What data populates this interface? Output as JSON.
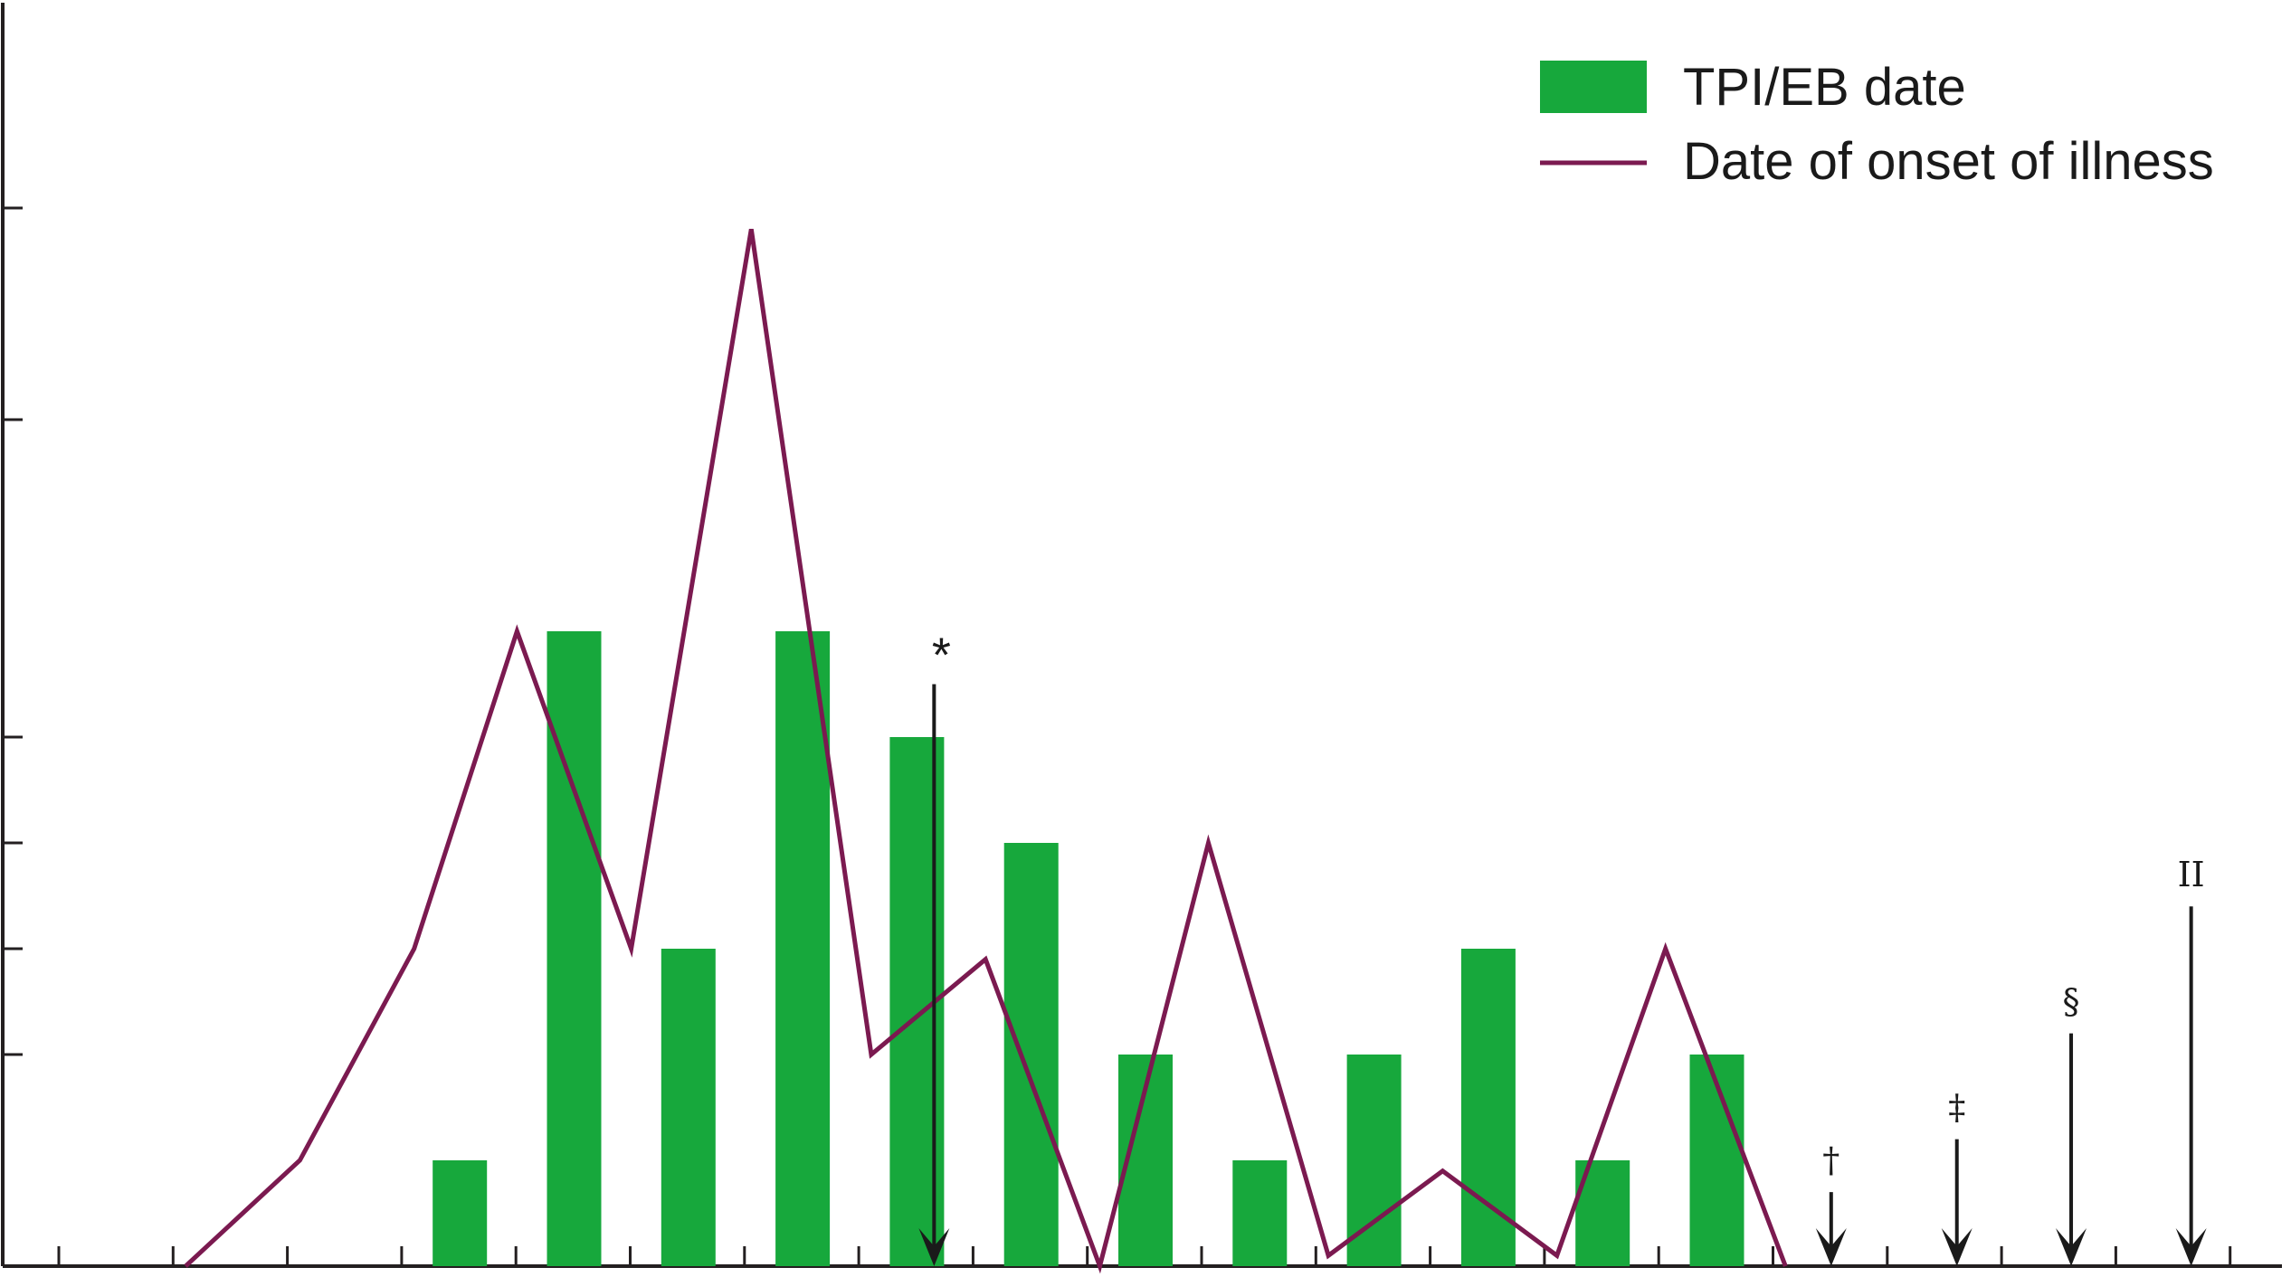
{
  "chart_data": {
    "type": "bar",
    "title": "",
    "xlabel": "",
    "ylabel": "",
    "ylim": [
      0,
      5
    ],
    "y_ticks": [
      0,
      1,
      1.5,
      2,
      2.5,
      4,
      5
    ],
    "x_slot_count": 19,
    "categories": [
      "1",
      "2",
      "3",
      "4",
      "5",
      "6",
      "7",
      "8",
      "9",
      "10",
      "11",
      "12",
      "13",
      "14",
      "15",
      "16",
      "17",
      "18",
      "19"
    ],
    "legend": {
      "position": "top-right",
      "entries": [
        {
          "name": "TPI/EB date",
          "kind": "bar",
          "color": "#17a83c"
        },
        {
          "name": "Date of onset of illness",
          "kind": "line",
          "color": "#7b1a50"
        }
      ]
    },
    "series": [
      {
        "name": "TPI/EB date",
        "kind": "bar",
        "color": "#17a83c",
        "points": [
          {
            "x": 4.5,
            "y": 0.5
          },
          {
            "x": 5.5,
            "y": 3.0
          },
          {
            "x": 6.5,
            "y": 1.5
          },
          {
            "x": 7.5,
            "y": 3.0
          },
          {
            "x": 8.5,
            "y": 2.5
          },
          {
            "x": 9.5,
            "y": 2.0
          },
          {
            "x": 10.5,
            "y": 1.0
          },
          {
            "x": 11.5,
            "y": 0.5
          },
          {
            "x": 12.5,
            "y": 1.0
          },
          {
            "x": 13.5,
            "y": 1.5
          },
          {
            "x": 14.5,
            "y": 0.5
          },
          {
            "x": 15.5,
            "y": 1.0
          }
        ]
      },
      {
        "name": "Date of onset of illness",
        "kind": "line",
        "color": "#7b1a50",
        "points": [
          {
            "x": 2.1,
            "y": 0.0
          },
          {
            "x": 3.1,
            "y": 0.5
          },
          {
            "x": 4.1,
            "y": 1.5
          },
          {
            "x": 5.0,
            "y": 3.0
          },
          {
            "x": 6.0,
            "y": 1.5
          },
          {
            "x": 7.05,
            "y": 4.9
          },
          {
            "x": 8.1,
            "y": 1.0
          },
          {
            "x": 9.1,
            "y": 1.45
          },
          {
            "x": 10.1,
            "y": 0.0
          },
          {
            "x": 11.05,
            "y": 2.0
          },
          {
            "x": 12.1,
            "y": 0.05
          },
          {
            "x": 13.1,
            "y": 0.45
          },
          {
            "x": 14.1,
            "y": 0.05
          },
          {
            "x": 15.05,
            "y": 1.5
          },
          {
            "x": 16.1,
            "y": 0.0
          }
        ]
      }
    ],
    "annotations": [
      {
        "symbol": "*",
        "x": 8.65,
        "y_top": 2.75
      },
      {
        "symbol": "†",
        "x": 16.5,
        "y_top": 0.35
      },
      {
        "symbol": "‡",
        "x": 17.6,
        "y_top": 0.6
      },
      {
        "symbol": "§",
        "x": 18.6,
        "y_top": 1.1
      },
      {
        "symbol": "II",
        "x": 19.65,
        "y_top": 1.7
      }
    ]
  }
}
